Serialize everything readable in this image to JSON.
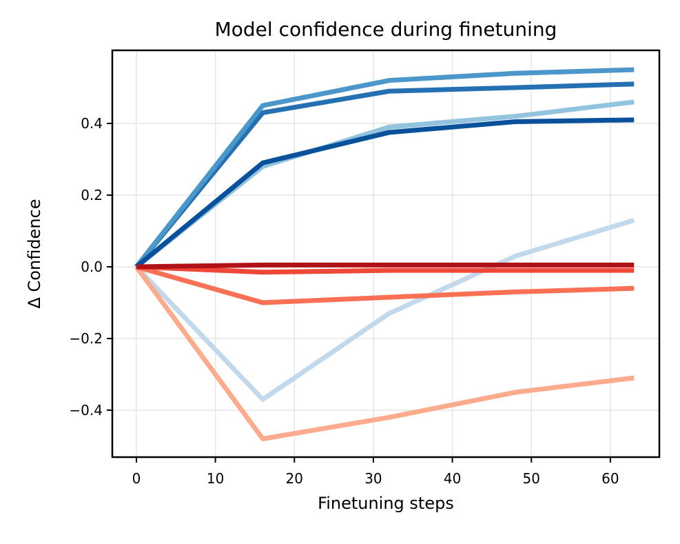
{
  "chart_data": {
    "type": "line",
    "title": "Model confidence during finetuning",
    "xlabel": "Finetuning steps",
    "ylabel": "Δ Confidence",
    "x": [
      0,
      16,
      32,
      48,
      63
    ],
    "series": [
      {
        "name": "blue-pale",
        "color": "#c2d8eb",
        "values": [
          0,
          -0.37,
          -0.13,
          0.03,
          0.13
        ]
      },
      {
        "name": "blue-light",
        "color": "#93c4df",
        "values": [
          0,
          0.28,
          0.39,
          0.42,
          0.46
        ]
      },
      {
        "name": "blue-steel",
        "color": "#2470b3",
        "values": [
          0,
          0.43,
          0.49,
          0.5,
          0.51
        ]
      },
      {
        "name": "blue-medium",
        "color": "#4b97c9",
        "values": [
          0,
          0.45,
          0.52,
          0.54,
          0.55
        ]
      },
      {
        "name": "blue-dark",
        "color": "#0a519c",
        "values": [
          0,
          0.29,
          0.375,
          0.405,
          0.41
        ]
      },
      {
        "name": "red-salmon",
        "color": "#fcab8d",
        "values": [
          0,
          -0.48,
          -0.42,
          -0.35,
          -0.31
        ]
      },
      {
        "name": "red-coral",
        "color": "#f97155",
        "values": [
          0,
          -0.1,
          -0.085,
          -0.07,
          -0.06
        ]
      },
      {
        "name": "red-bright",
        "color": "#ee4836",
        "values": [
          0,
          -0.015,
          -0.01,
          -0.01,
          -0.01
        ]
      },
      {
        "name": "red-dark",
        "color": "#b11217",
        "values": [
          0,
          0.005,
          0.005,
          0.005,
          0.005
        ]
      }
    ],
    "xlim": [
      -3.05,
      66.2
    ],
    "ylim": [
      -0.531,
      0.604
    ],
    "x_ticks": [
      0,
      10,
      20,
      30,
      40,
      50,
      60
    ],
    "x_tick_labels": [
      "0",
      "10",
      "20",
      "30",
      "40",
      "50",
      "60"
    ],
    "y_ticks": [
      0.4,
      0.2,
      0.0,
      -0.2,
      -0.4
    ],
    "y_tick_labels": [
      "0.4",
      "0.2",
      "0.0",
      "−0.2",
      "−0.4"
    ],
    "grid": true,
    "grid_color": "#e7e7e7",
    "background": "#ffffff",
    "spine_color": "#000000",
    "legend": "none"
  }
}
